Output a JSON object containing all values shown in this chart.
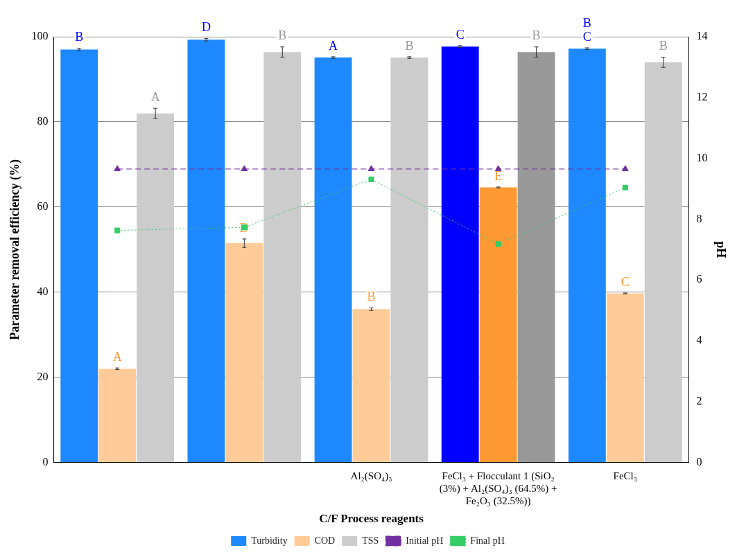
{
  "chart_data": {
    "type": "bar",
    "xlabel": "C/F Process reagents",
    "ylabel": "Parameter removal efficiency (%)",
    "y2label": "pH",
    "categories": [
      null,
      null,
      "Al₂(SO₄)₃",
      "FeCl₃ + Flocculant 1 (SiO₂ (3%) + Al₂(SO₄)₃ (64.5%) + Fe₂O₃ (32.5%))",
      "FeCl₃"
    ],
    "series": [
      {
        "name": "Turbidity",
        "color": "#0000ff",
        "colors": [
          "#1e88ff",
          "#1e88ff",
          "#1e88ff",
          "#0000ff",
          "#1e88ff"
        ],
        "values": [
          97.0,
          99.3,
          95.1,
          97.7,
          97.2
        ],
        "errors": [
          0.3,
          0.3,
          0.2,
          0.2,
          0.2
        ],
        "value_labels": [
          "B",
          "D",
          "A",
          "C",
          "B\nC"
        ]
      },
      {
        "name": "COD",
        "color": "#ff9933",
        "colors": [
          "#ffcc99",
          "#ffcc99",
          "#ffcc99",
          "#ff9933",
          "#ffcc99"
        ],
        "values": [
          22.0,
          51.5,
          36.0,
          64.6,
          39.7
        ],
        "errors": [
          0.2,
          1.0,
          0.3,
          0.1,
          0.1
        ],
        "value_labels": [
          "A",
          "D",
          "B",
          "E",
          "C"
        ]
      },
      {
        "name": "TSS",
        "color": "#999999",
        "colors": [
          "#cccccc",
          "#cccccc",
          "#cccccc",
          "#999999",
          "#cccccc"
        ],
        "values": [
          82.0,
          96.4,
          95.1,
          96.4,
          94.0
        ],
        "errors": [
          1.2,
          1.2,
          0.2,
          1.2,
          1.2
        ],
        "value_labels": [
          "A",
          "B",
          "B",
          "B",
          "B"
        ]
      },
      {
        "name": "Initial pH",
        "type": "line",
        "axis": "y2",
        "color": "#7030a0",
        "marker": "triangle",
        "line_style": "dashed",
        "values": [
          9.65,
          9.65,
          9.65,
          9.65,
          9.65
        ]
      },
      {
        "name": "Final pH",
        "type": "line",
        "axis": "y2",
        "color": "#33cc66",
        "marker": "square",
        "line_style": "dotted",
        "values": [
          7.63,
          7.73,
          9.31,
          7.18,
          9.04
        ]
      }
    ],
    "ylim": [
      0,
      100
    ],
    "yticks": [
      0,
      20,
      40,
      60,
      80,
      100
    ],
    "y2lim": [
      0,
      14
    ],
    "y2ticks": [
      0,
      2,
      4,
      6,
      8,
      10,
      12,
      14
    ],
    "grid": "y",
    "legend": "bottom"
  }
}
